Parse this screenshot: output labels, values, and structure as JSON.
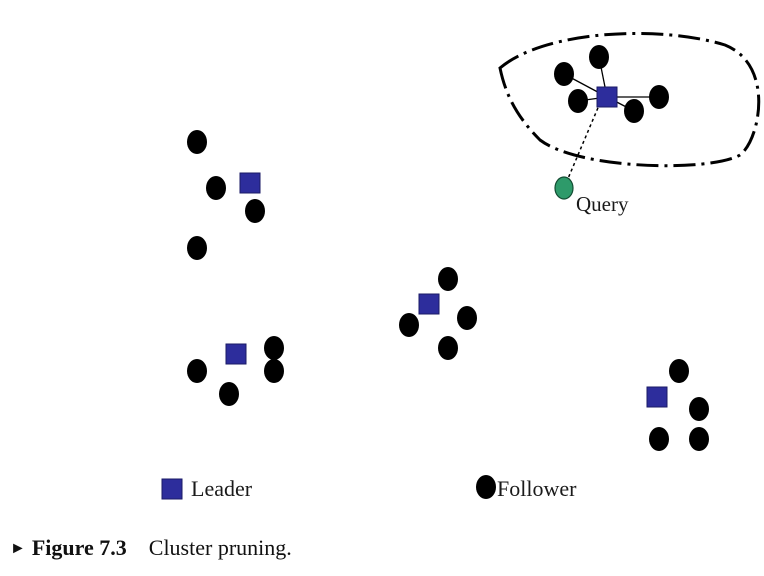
{
  "diagram": {
    "query_label": "Query",
    "legend": {
      "leader_label": "Leader",
      "follower_label": "Follower"
    }
  },
  "caption": {
    "marker": "►",
    "figure_number": "Figure 7.3",
    "text": "Cluster pruning."
  },
  "colors": {
    "leader": "#2d2d9c",
    "follower": "#000000",
    "query": "#2e9a6a",
    "background": "#ffffff"
  },
  "icons": {
    "leader": "blue-square-icon",
    "follower": "black-dot-icon",
    "query": "green-dot-icon"
  }
}
